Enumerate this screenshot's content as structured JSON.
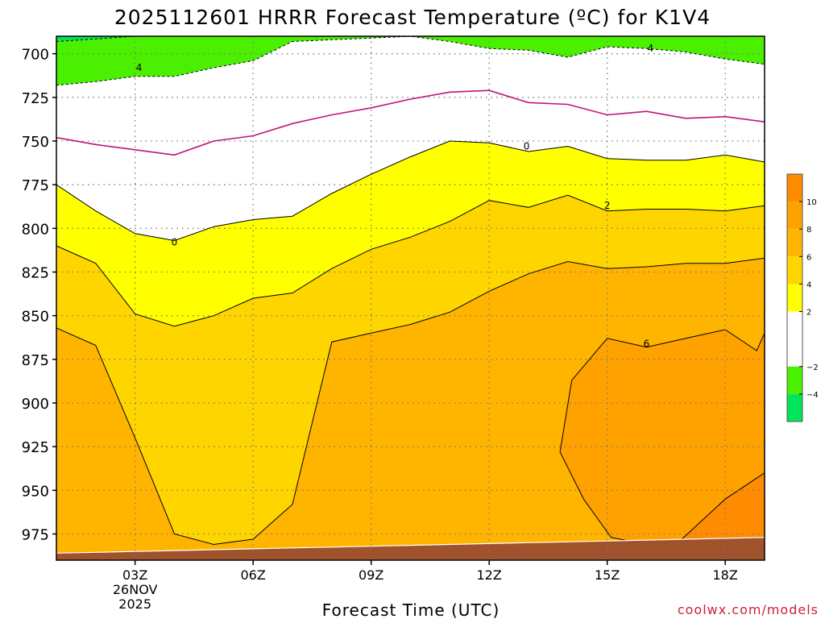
{
  "chart_data": {
    "type": "heatmap",
    "title": "2025112601 HRRR Forecast Temperature (ºC) for K1V4",
    "xlabel": "Forecast Time (UTC)",
    "ylabel": "",
    "credit": "coolwx.com/models",
    "x_hours": [
      1,
      2,
      3,
      4,
      5,
      6,
      7,
      8,
      9,
      10,
      11,
      12,
      13,
      14,
      15,
      16,
      17,
      18,
      19
    ],
    "xlim": [
      1,
      19
    ],
    "ylim": [
      690,
      990
    ],
    "y_scale": "inverted",
    "grid": true,
    "x_ticks": [
      {
        "hour": 3,
        "label": "03Z",
        "sub": [
          "26NOV",
          "2025"
        ]
      },
      {
        "hour": 6,
        "label": "06Z"
      },
      {
        "hour": 9,
        "label": "09Z"
      },
      {
        "hour": 12,
        "label": "12Z"
      },
      {
        "hour": 15,
        "label": "15Z"
      },
      {
        "hour": 18,
        "label": "18Z"
      }
    ],
    "y_ticks": [
      700,
      725,
      750,
      775,
      800,
      825,
      850,
      875,
      900,
      925,
      950,
      975
    ],
    "surface_pressure_hPa": [
      986,
      985.5,
      985,
      984.5,
      984,
      983.5,
      983,
      982.5,
      982,
      981.5,
      981,
      980.5,
      980,
      979.5,
      979,
      978.5,
      978,
      977.5,
      977
    ],
    "isotherms_hPa": {
      "-4": [
        693,
        691.5,
        690,
        690,
        690,
        690,
        690,
        690,
        690,
        690,
        690,
        690,
        690,
        690,
        690,
        690,
        690,
        690,
        690
      ],
      "-2": [
        718,
        716,
        713,
        713,
        708,
        704,
        693,
        692,
        691,
        690,
        693,
        697,
        698,
        702,
        696,
        697,
        699,
        703,
        706
      ],
      "0": [
        748,
        752,
        755,
        758,
        750,
        747,
        740,
        735,
        731,
        726,
        722,
        721,
        728,
        729,
        735,
        733,
        737,
        736,
        739
      ],
      "2": [
        775,
        790,
        803,
        807,
        799,
        795,
        793,
        780,
        769,
        759,
        750,
        751,
        756,
        753,
        760,
        761,
        761,
        758,
        762
      ],
      "4": [
        810,
        820,
        849,
        856,
        850,
        840,
        837,
        823,
        812,
        805,
        796,
        784,
        788,
        781,
        790,
        789,
        789,
        790,
        787
      ],
      "6": [
        857,
        867,
        920,
        975,
        981,
        978,
        958,
        865,
        860,
        855,
        848,
        836,
        826,
        819,
        823,
        822,
        820,
        820,
        817
      ],
      "8": [
        990,
        990,
        990,
        990,
        990,
        990,
        990,
        990,
        990,
        990,
        990,
        990,
        990,
        990,
        990,
        990,
        990,
        990,
        990
      ]
    },
    "warm_pocket_6C": {
      "hours": [
        14.1,
        15,
        16,
        17,
        18,
        18.8,
        19,
        19,
        18,
        16,
        15.1,
        14.4,
        13.8,
        14.1
      ],
      "hPa": [
        887,
        863,
        868,
        863,
        858,
        870,
        860,
        975,
        980,
        981,
        977,
        955,
        928,
        887
      ]
    },
    "warm_pocket_8C": {
      "hours": [
        16.8,
        18,
        19,
        19,
        16.8
      ],
      "hPa": [
        980,
        955,
        940,
        982,
        980
      ]
    },
    "contour_labels": [
      {
        "text": "4",
        "hour": 3.1,
        "hPa": 708
      },
      {
        "text": "4",
        "hour": 16.1,
        "hPa": 697
      },
      {
        "text": "0",
        "hour": 4.0,
        "hPa": 808
      },
      {
        "text": "0",
        "hour": 12.95,
        "hPa": 753
      },
      {
        "text": "2",
        "hour": 15.0,
        "hPa": 787
      },
      {
        "text": "6",
        "hour": 16.0,
        "hPa": 866
      }
    ],
    "colorbar": {
      "labels": [
        "10",
        "8",
        "6",
        "4",
        "2",
        "−2",
        "−4"
      ],
      "bands": [
        {
          "lo": 10,
          "hi": 12,
          "color": "#ff8c00"
        },
        {
          "lo": 8,
          "hi": 10,
          "color": "#ffa200"
        },
        {
          "lo": 6,
          "hi": 8,
          "color": "#ffb400"
        },
        {
          "lo": 4,
          "hi": 6,
          "color": "#ffd500"
        },
        {
          "lo": 2,
          "hi": 4,
          "color": "#ffff00"
        },
        {
          "lo": -2,
          "hi": 2,
          "color": "#ffffff"
        },
        {
          "lo": -4,
          "hi": -2,
          "color": "#4bf000"
        },
        {
          "lo": -6,
          "hi": -4,
          "color": "#00e55c"
        }
      ]
    },
    "colors": {
      "ground": "#a0522d",
      "freezing_line": "#c0147a",
      "contour": "#000000"
    }
  }
}
